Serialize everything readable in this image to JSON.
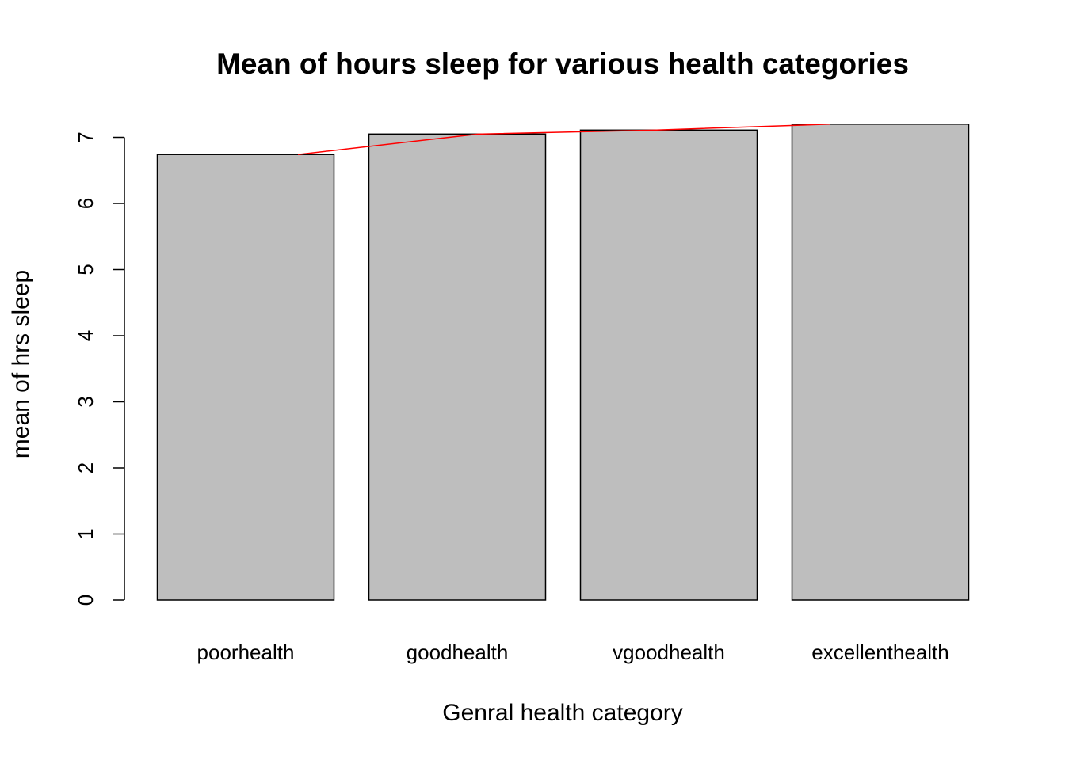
{
  "chart_data": {
    "type": "bar",
    "title": "Mean of hours sleep for various health categories",
    "xlabel": "Genral health category",
    "ylabel": "mean of hrs sleep",
    "categories": [
      "poorhealth",
      "goodhealth",
      "vgoodhealth",
      "excellenthealth"
    ],
    "values": [
      6.74,
      7.05,
      7.11,
      7.2
    ],
    "yticks": [
      "0",
      "1",
      "2",
      "3",
      "4",
      "5",
      "6",
      "7"
    ],
    "ylim": [
      0,
      7
    ],
    "bar_color": "#bebebe",
    "bar_border_color": "#000000",
    "overlay_line": {
      "color": "#ff0000",
      "x": [
        "poorhealth",
        "goodhealth",
        "vgoodhealth",
        "excellenthealth"
      ],
      "values": [
        6.74,
        7.05,
        7.11,
        7.2
      ]
    },
    "grid": false,
    "legend": "none"
  }
}
